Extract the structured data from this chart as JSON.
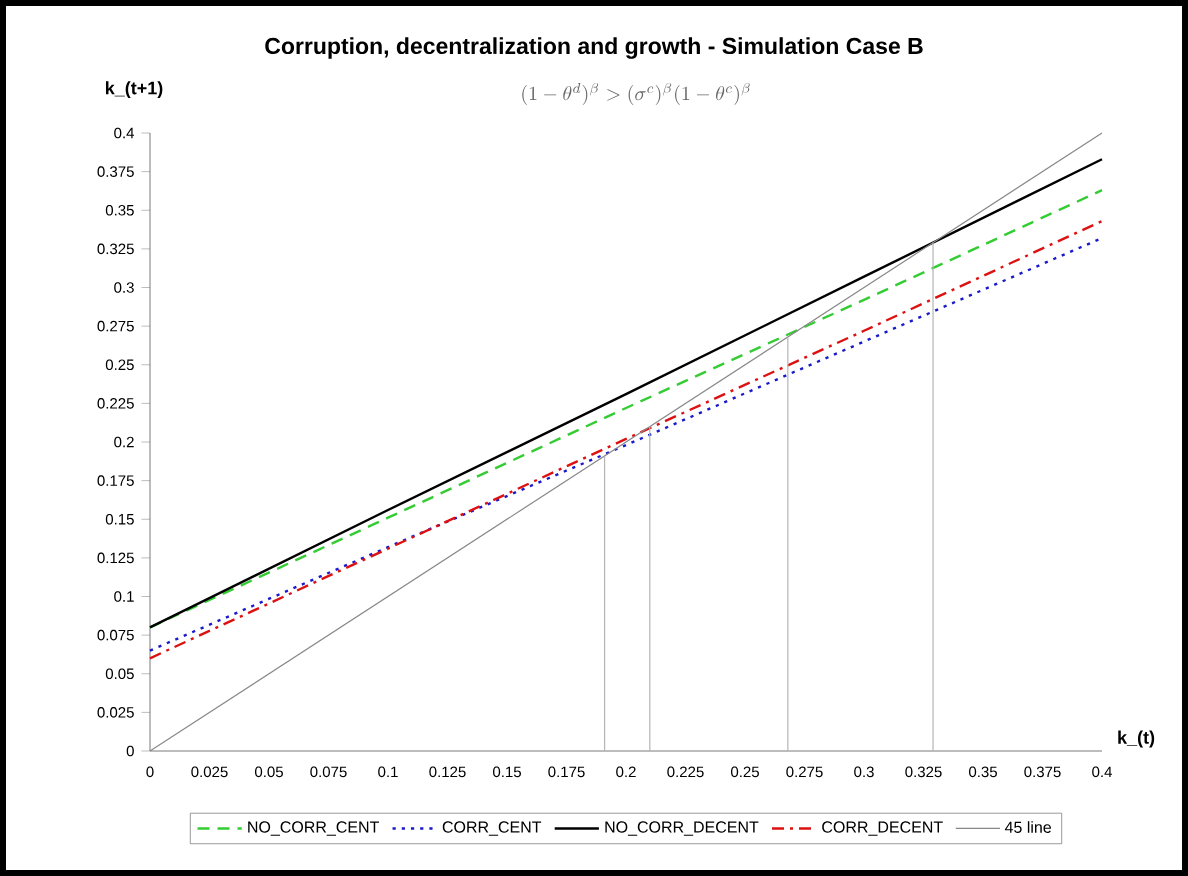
{
  "chart_data": {
    "type": "line",
    "title": "Corruption, decentralization and growth - Simulation Case B",
    "xlabel": "k_(t)",
    "ylabel": "k_(t+1)",
    "annotations": [
      "(1-\\theta^{d})^{\\beta} > (\\sigma^{c})^{\\beta}(1-\\theta^{c})^{\\beta}"
    ],
    "xlim": [
      0,
      0.4
    ],
    "ylim": [
      0,
      0.4
    ],
    "xticks": [
      0,
      0.025,
      0.05,
      0.075,
      0.1,
      0.125,
      0.15,
      0.175,
      0.2,
      0.225,
      0.25,
      0.275,
      0.3,
      0.325,
      0.35,
      0.375,
      0.4
    ],
    "yticks": [
      0,
      0.025,
      0.05,
      0.075,
      0.1,
      0.125,
      0.15,
      0.175,
      0.2,
      0.225,
      0.25,
      0.275,
      0.3,
      0.325,
      0.35,
      0.375,
      0.4
    ],
    "x": [
      0,
      0.1,
      0.2,
      0.3,
      0.4
    ],
    "grid": false,
    "legend": "bottom",
    "marker": "none",
    "series": [
      {
        "name": "NO_CORR_CENT",
        "color": "#33cc33",
        "line_style": "dashed",
        "values": [
          0.08,
          0.151,
          0.222,
          0.292,
          0.363
        ]
      },
      {
        "name": "CORR_CENT",
        "color": "#1a1acc",
        "line_style": "dotted",
        "values": [
          0.065,
          0.132,
          0.198,
          0.265,
          0.332
        ]
      },
      {
        "name": "NO_CORR_DECENT",
        "color": "#000000",
        "line_style": "solid",
        "values": [
          0.08,
          0.156,
          0.231,
          0.307,
          0.383
        ]
      },
      {
        "name": "CORR_DECENT",
        "color": "#dd1111",
        "line_style": "dashdot",
        "values": [
          0.06,
          0.131,
          0.202,
          0.272,
          0.343
        ]
      },
      {
        "name": "45 line",
        "color": "#888888",
        "line_style": "solid",
        "x": [
          0,
          0.4
        ],
        "values": [
          0,
          0.4
        ]
      },
      {
        "color": "#b4b4b4",
        "line_style": "solid",
        "x": [
          0.191,
          0.191
        ],
        "values": [
          0,
          0.191
        ]
      },
      {
        "color": "#b4b4b4",
        "line_style": "solid",
        "x": [
          0.21,
          0.21
        ],
        "values": [
          0,
          0.21
        ]
      },
      {
        "color": "#b4b4b4",
        "line_style": "solid",
        "x": [
          0.268,
          0.268
        ],
        "values": [
          0,
          0.268
        ]
      },
      {
        "color": "#b4b4b4",
        "line_style": "solid",
        "x": [
          0.329,
          0.329
        ],
        "values": [
          0,
          0.329
        ]
      }
    ]
  }
}
